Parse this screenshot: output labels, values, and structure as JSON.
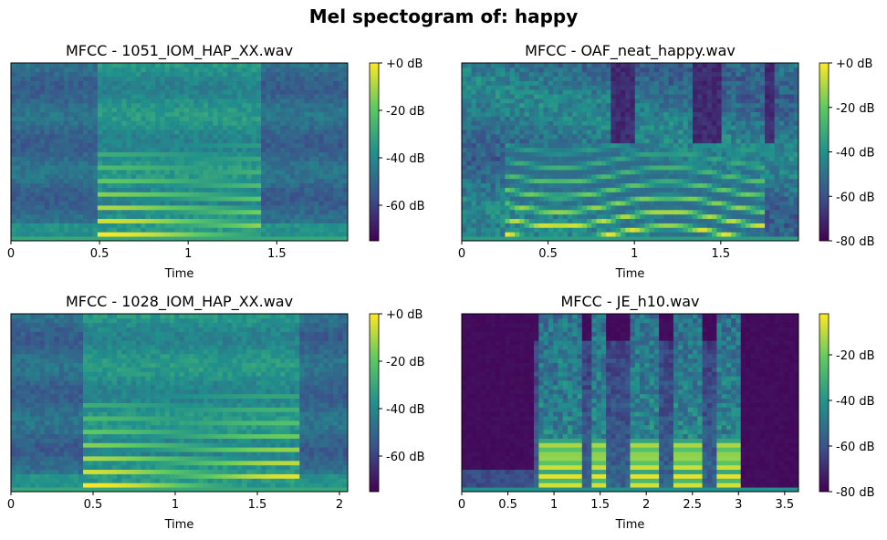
{
  "figure": {
    "suptitle": "Mel spectogram of: happy",
    "colormap": "viridis",
    "colormap_stops": [
      "#440154",
      "#3b528b",
      "#21918c",
      "#5ec962",
      "#fde725"
    ]
  },
  "chart_data": [
    {
      "type": "heatmap",
      "title": "MFCC - 1051_IOM_HAP_XX.wav",
      "xlabel": "Time",
      "ylabel": "",
      "xlim": [
        0,
        1.9
      ],
      "xticks": [
        0,
        0.5,
        1,
        1.5
      ],
      "xtick_labels": [
        "0",
        "0.5",
        "1",
        "1.5"
      ],
      "yticks_visible": false,
      "color_range_db": [
        -75,
        0
      ],
      "colorbar_ticks": [
        0,
        -20,
        -40,
        -60
      ],
      "colorbar_labels": [
        "+0 dB",
        "-20 dB",
        "-40 dB",
        "-60 dB"
      ],
      "speech_span_s": [
        0.5,
        1.4
      ],
      "bright_harmonic_bands": 4,
      "profile": "low_noise_floor"
    },
    {
      "type": "heatmap",
      "title": "MFCC - OAF_neat_happy.wav",
      "xlabel": "Time",
      "ylabel": "",
      "xlim": [
        0,
        1.95
      ],
      "xticks": [
        0,
        0.5,
        1,
        1.5
      ],
      "xtick_labels": [
        "0",
        "0.5",
        "1",
        "1.5"
      ],
      "yticks_visible": false,
      "color_range_db": [
        -80,
        0
      ],
      "colorbar_ticks": [
        0,
        -20,
        -40,
        -60,
        -80
      ],
      "colorbar_labels": [
        "+0 dB",
        "-20 dB",
        "-40 dB",
        "-60 dB",
        "-80 dB"
      ],
      "speech_span_s": [
        0.25,
        1.75
      ],
      "bright_harmonic_bands": 5,
      "profile": "curved_harmonics"
    },
    {
      "type": "heatmap",
      "title": "MFCC - 1028_IOM_HAP_XX.wav",
      "xlabel": "Time",
      "ylabel": "",
      "xlim": [
        0,
        2.05
      ],
      "xticks": [
        0,
        0.5,
        1,
        1.5,
        2
      ],
      "xtick_labels": [
        "0",
        "0.5",
        "1",
        "1.5",
        "2"
      ],
      "yticks_visible": false,
      "color_range_db": [
        -75,
        0
      ],
      "colorbar_ticks": [
        0,
        -20,
        -40,
        -60
      ],
      "colorbar_labels": [
        "+0 dB",
        "-20 dB",
        "-40 dB",
        "-60 dB"
      ],
      "speech_span_s": [
        0.45,
        1.75
      ],
      "bright_harmonic_bands": 5,
      "profile": "low_noise_floor"
    },
    {
      "type": "heatmap",
      "title": "MFCC - JE_h10.wav",
      "xlabel": "Time",
      "ylabel": "",
      "xlim": [
        0,
        3.65
      ],
      "xticks": [
        0,
        0.5,
        1,
        1.5,
        2,
        2.5,
        3,
        3.5
      ],
      "xtick_labels": [
        "0",
        "0.5",
        "1",
        "1.5",
        "2",
        "2.5",
        "3",
        "3.5"
      ],
      "yticks_visible": false,
      "color_range_db": [
        -80,
        -2
      ],
      "colorbar_ticks": [
        -20,
        -40,
        -60,
        -80
      ],
      "colorbar_labels": [
        "-20 dB",
        "-40 dB",
        "-60 dB",
        "-80 dB"
      ],
      "speech_segments_s": [
        [
          0.85,
          1.3
        ],
        [
          1.4,
          1.55
        ],
        [
          1.85,
          2.15
        ],
        [
          2.3,
          2.6
        ],
        [
          2.75,
          3.0
        ]
      ],
      "bright_harmonic_bands": 4,
      "profile": "segmented_dark_background"
    }
  ]
}
